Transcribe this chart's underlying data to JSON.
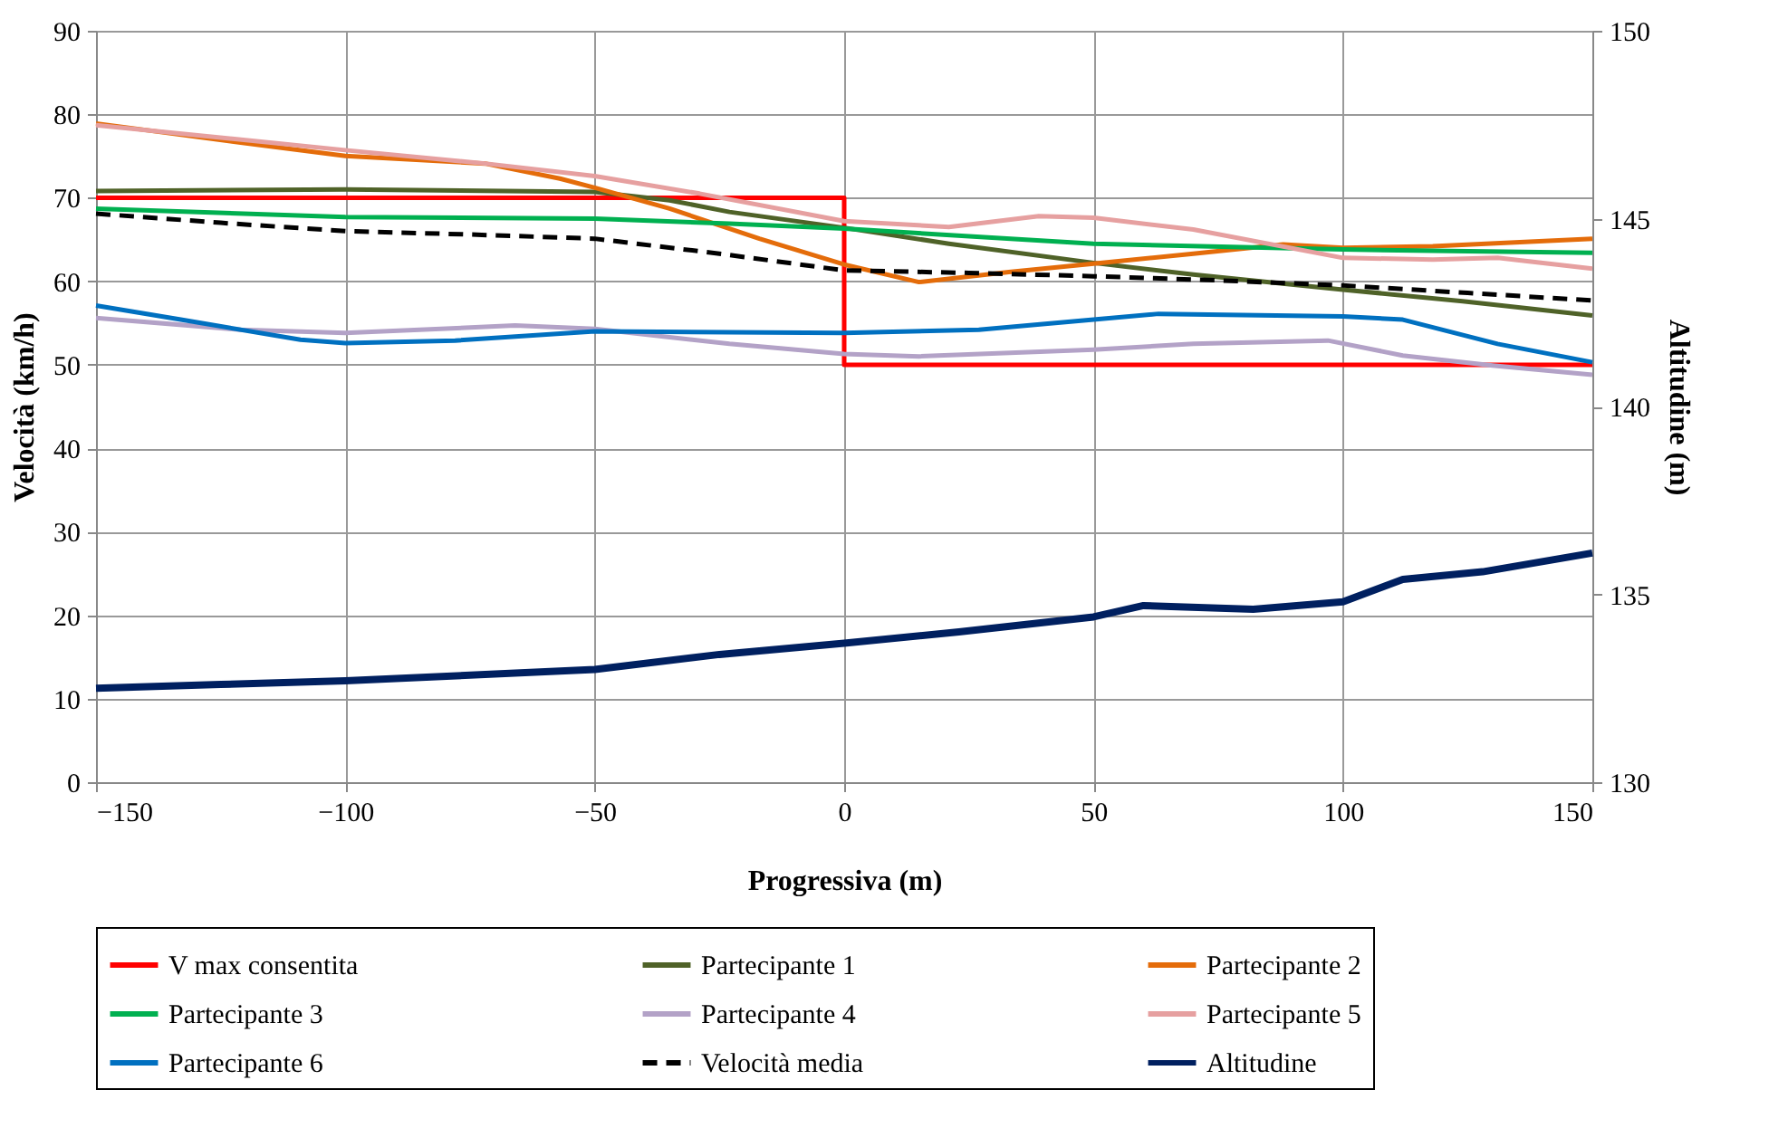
{
  "chart_data": {
    "type": "line",
    "xlabel": "Progressiva (m)",
    "ylabel": "Velocità (km/h)",
    "y2label": "Altitudine (m)",
    "xlim": [
      -150,
      150
    ],
    "xticks": [
      -150,
      -100,
      -50,
      0,
      50,
      100,
      150
    ],
    "ylim": [
      0,
      90
    ],
    "yticks": [
      0,
      10,
      20,
      30,
      40,
      50,
      60,
      70,
      80,
      90
    ],
    "y2lim": [
      130,
      150
    ],
    "y2ticks": [
      130,
      135,
      140,
      145,
      150
    ],
    "grid": true,
    "legend": "bottom",
    "marker": "none",
    "line_style": "solid",
    "series": [
      {
        "name": "V max consentita",
        "color": "#ff0000",
        "x": [
          -150,
          0,
          0,
          150
        ],
        "values": [
          70,
          70,
          50,
          50
        ]
      },
      {
        "name": "Partecipante 1",
        "color": "#4f6228",
        "x": [
          -150,
          -100,
          -50,
          -35,
          -23,
          0,
          21,
          50,
          70,
          100,
          124,
          150
        ],
        "values": [
          70.8,
          71.0,
          70.7,
          69.7,
          68.3,
          66.4,
          64.5,
          62.2,
          60.8,
          59.0,
          57.6,
          55.9
        ]
      },
      {
        "name": "Partecipante 2",
        "color": "#e46c0a",
        "x": [
          -150,
          -121,
          -100,
          -72,
          -57,
          -50,
          -35,
          -17,
          0,
          15,
          33,
          50,
          70,
          88,
          100,
          118,
          150
        ],
        "values": [
          78.9,
          76.6,
          75.0,
          74.1,
          72.3,
          71.2,
          68.7,
          65.1,
          62.0,
          59.9,
          61.1,
          62.1,
          63.3,
          64.4,
          64.0,
          64.2,
          65.1
        ]
      },
      {
        "name": "Partecipante 3",
        "color": "#00b050",
        "x": [
          -150,
          -100,
          -50,
          -23,
          0,
          50,
          100,
          150
        ],
        "values": [
          68.7,
          67.7,
          67.5,
          66.9,
          66.3,
          64.5,
          63.8,
          63.4
        ]
      },
      {
        "name": "Partecipante 4",
        "color": "#b3a2c7",
        "x": [
          -150,
          -121,
          -100,
          -66,
          -50,
          -23,
          0,
          15,
          50,
          70,
          97,
          112,
          130,
          150
        ],
        "values": [
          55.6,
          54.2,
          53.8,
          54.7,
          54.3,
          52.5,
          51.3,
          51.0,
          51.8,
          52.5,
          52.9,
          51.1,
          49.9,
          48.8
        ]
      },
      {
        "name": "Partecipante 5",
        "color": "#e6a0a0",
        "x": [
          -150,
          -100,
          -72,
          -50,
          -29,
          0,
          21,
          39,
          50,
          70,
          100,
          118,
          131,
          150
        ],
        "values": [
          78.7,
          75.7,
          74.1,
          72.6,
          70.5,
          67.2,
          66.5,
          67.8,
          67.6,
          66.2,
          62.8,
          62.6,
          62.8,
          61.5
        ]
      },
      {
        "name": "Partecipante 6",
        "color": "#0070c0",
        "x": [
          -150,
          -133,
          -109,
          -100,
          -78,
          -50,
          0,
          27,
          50,
          63,
          100,
          112,
          131,
          150
        ],
        "values": [
          57.1,
          55.4,
          53.0,
          52.6,
          52.9,
          54.0,
          53.8,
          54.2,
          55.4,
          56.1,
          55.8,
          55.4,
          52.5,
          50.3
        ]
      },
      {
        "name": "Velocità media",
        "color": "#000000",
        "line_style": "dashed",
        "x": [
          -150,
          -125,
          -100,
          -75,
          -50,
          -25,
          0,
          25,
          50,
          75,
          100,
          125,
          150
        ],
        "values": [
          68.1,
          67.0,
          66.0,
          65.6,
          65.1,
          63.3,
          61.3,
          61.0,
          60.6,
          60.1,
          59.5,
          58.6,
          57.7
        ]
      },
      {
        "name": "Altitudine",
        "color": "#002060",
        "axis": "y2",
        "x": [
          -150,
          -125,
          -100,
          -50,
          -25,
          0,
          23,
          50,
          60,
          82,
          100,
          112,
          128,
          150
        ],
        "values": [
          132.5,
          132.6,
          132.7,
          133.0,
          133.4,
          133.7,
          134.0,
          134.4,
          134.7,
          134.6,
          134.8,
          135.4,
          135.6,
          136.1
        ]
      }
    ]
  }
}
